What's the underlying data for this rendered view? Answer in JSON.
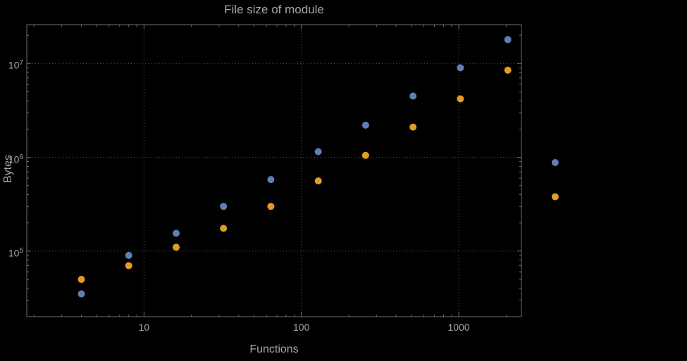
{
  "title": "File size of module",
  "colors": {
    "background": "#000000",
    "text": "#a6a6a6",
    "frame": "#6e6e6e",
    "grid": "#575757",
    "series_blue": "#5e81b5",
    "series_orange": "#e19c24"
  },
  "chart_data": {
    "type": "scatter",
    "title": "File size of module",
    "xlabel": "Functions",
    "ylabel": "Bytes",
    "x_scale": "log",
    "y_scale": "log",
    "grid": "dotted major gridlines",
    "legend_position": "none",
    "xlim": [
      1.8,
      2500
    ],
    "ylim": [
      20000,
      26000000
    ],
    "x_ticks": [
      10,
      100,
      1000
    ],
    "y_ticks": [
      100000,
      1000000,
      10000000
    ],
    "x": [
      4,
      8,
      16,
      32,
      64,
      128,
      256,
      512,
      1024,
      2048,
      4096
    ],
    "series": [
      {
        "name": "blue",
        "color": "#5e81b5",
        "values": [
          35000,
          90000,
          155000,
          300000,
          580000,
          1150000,
          2200000,
          4500000,
          9000000,
          18000000,
          880000
        ]
      },
      {
        "name": "orange",
        "color": "#e19c24",
        "values": [
          50000,
          70000,
          110000,
          175000,
          300000,
          560000,
          1050000,
          2100000,
          4200000,
          8500000,
          380000
        ]
      }
    ]
  }
}
